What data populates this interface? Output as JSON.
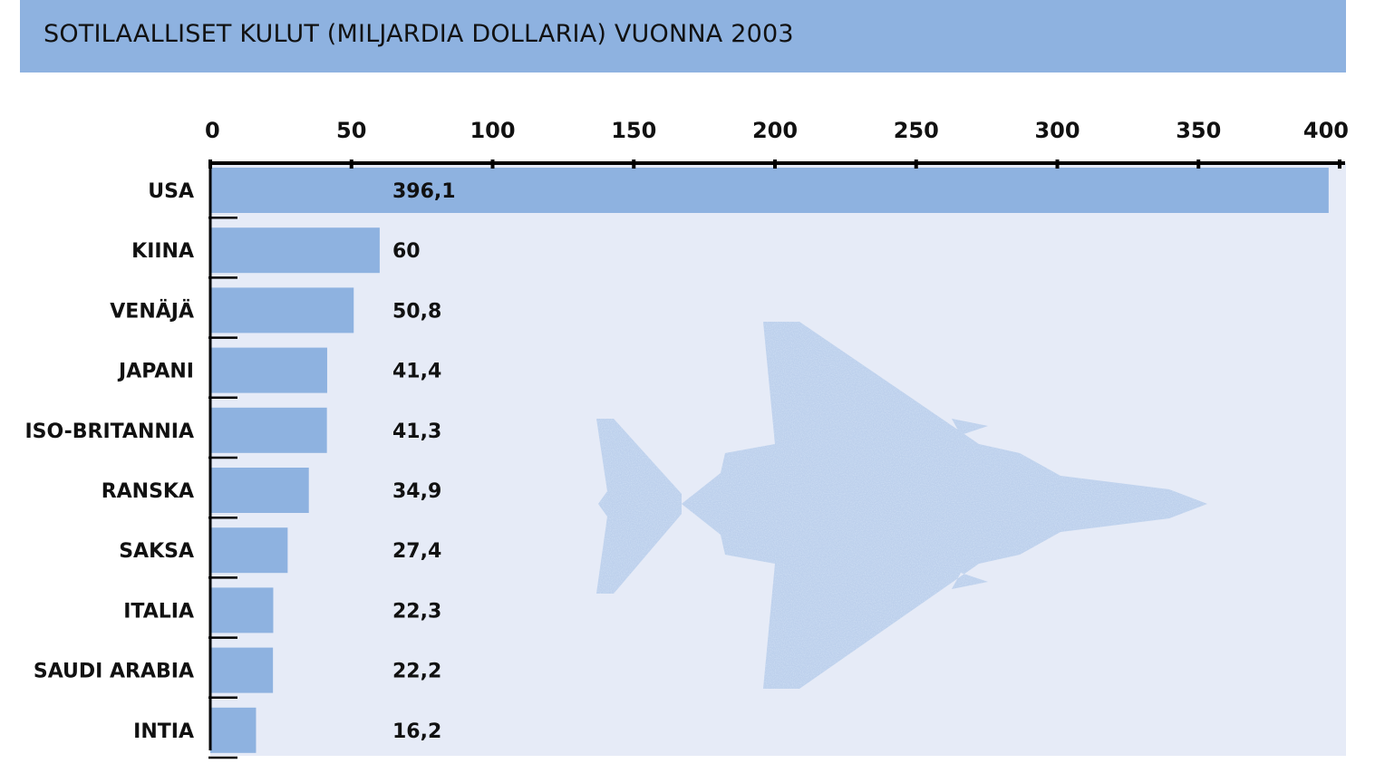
{
  "title": "SOTILAALLISET KULUT (MILJARDIA DOLLARIA) VUONNA 2003",
  "colors": {
    "title_bg": "#8eb2e0",
    "bar": "#8eb2e0",
    "plot_bg": "#e6ebf7",
    "plane": "#9ab9e4",
    "axis": "#000000"
  },
  "chart_data": {
    "type": "bar",
    "orientation": "horizontal",
    "title": "SOTILAALLISET KULUT (MILJARDIA DOLLARIA) VUONNA 2003",
    "categories": [
      "USA",
      "KIINA",
      "VENÄJÄ",
      "JAPANI",
      "ISO-BRITANNIA",
      "RANSKA",
      "SAKSA",
      "ITALIA",
      "SAUDI ARABIA",
      "INTIA"
    ],
    "values": [
      396.1,
      60,
      50.8,
      41.4,
      41.3,
      34.9,
      27.4,
      22.3,
      22.2,
      16.2
    ],
    "value_labels": [
      "396,1",
      "60",
      "50,8",
      "41,4",
      "41,3",
      "34,9",
      "27,4",
      "22,3",
      "22,2",
      "16,2"
    ],
    "xticks": [
      "0",
      "50",
      "100",
      "150",
      "200",
      "250",
      "300",
      "350",
      "400"
    ],
    "xlim": [
      0,
      400
    ],
    "axis_position": "top",
    "grid": false,
    "xlabel": "",
    "ylabel": ""
  }
}
